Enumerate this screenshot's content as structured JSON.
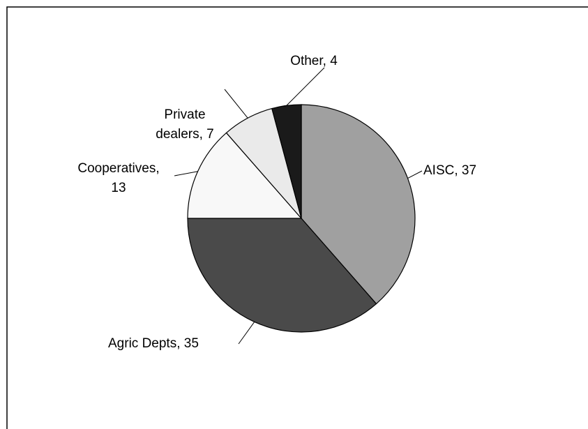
{
  "chart_data": {
    "type": "pie",
    "values": [
      37,
      35,
      13,
      7,
      4
    ],
    "value_labels": [
      "AISC, 37",
      "Agric Depts, 35",
      "Cooperatives,\n13",
      "Private\ndealers, 7",
      "Other, 4"
    ],
    "colors": [
      "#a0a0a0",
      "#4a4a4a",
      "#f8f8f8",
      "#eaeaea",
      "#1a1a1a"
    ],
    "start_angle": 0,
    "direction": "clockwise"
  }
}
